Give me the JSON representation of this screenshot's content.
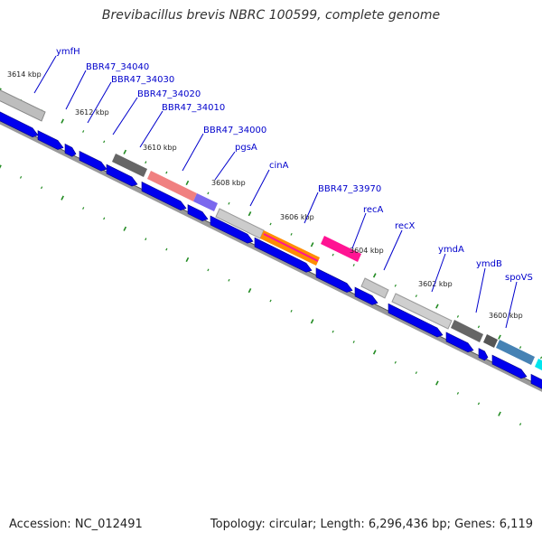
{
  "title": "Brevibacillus brevis NBRC 100599, complete genome",
  "footer": {
    "accession": "Accession: NC_012491",
    "summary": "Topology: circular; Length: 6,296,436 bp; Genes: 6,119"
  },
  "kbp_labels": [
    "3614 kbp",
    "3612 kbp",
    "3610 kbp",
    "3608 kbp",
    "3606 kbp",
    "3604 kbp",
    "3602 kbp",
    "3600 kbp"
  ],
  "gene_labels": [
    "ymfH",
    "BBR47_34040",
    "BBR47_34030",
    "BBR47_34020",
    "BBR47_34010",
    "BBR47_34000",
    "pgsA",
    "cinA",
    "BBR47_33970",
    "recA",
    "recX",
    "ymdA",
    "ymdB",
    "spoVS"
  ],
  "colors": {
    "cds_arrow": "#0000ee",
    "backbone": "#7a7a7a",
    "tick": "#228b22",
    "gene_label": "#0000cc"
  }
}
